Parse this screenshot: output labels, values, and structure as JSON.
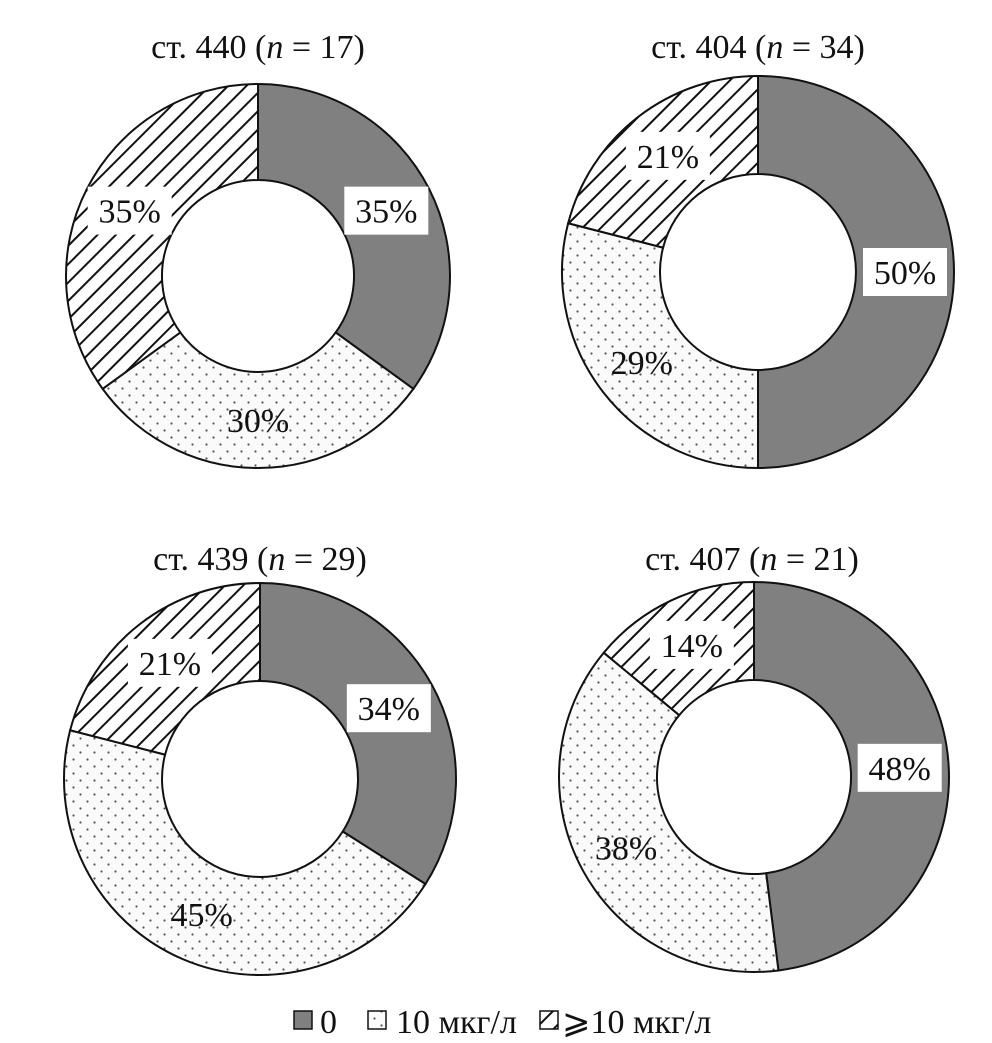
{
  "chart_data": [
    {
      "type": "pie",
      "title": "ст. 440 (n = 17)",
      "title_parts": {
        "prefix": "ст. 440 (",
        "n": "n",
        "suffix": " = 17)"
      },
      "series": [
        {
          "name": "0",
          "value": 35,
          "label": "35%"
        },
        {
          "name": "10 мкг/л",
          "value": 30,
          "label": "30%"
        },
        {
          "name": "≥10 мкг/л",
          "value": 35,
          "label": "35%"
        }
      ]
    },
    {
      "type": "pie",
      "title": "ст. 404 (n = 34)",
      "title_parts": {
        "prefix": "ст. 404 (",
        "n": "n",
        "suffix": " = 34)"
      },
      "series": [
        {
          "name": "0",
          "value": 50,
          "label": "50%"
        },
        {
          "name": "10 мкг/л",
          "value": 29,
          "label": "29%"
        },
        {
          "name": "≥10 мкг/л",
          "value": 21,
          "label": "21%"
        }
      ]
    },
    {
      "type": "pie",
      "title": "ст. 439 (n = 29)",
      "title_parts": {
        "prefix": "ст. 439 (",
        "n": "n",
        "suffix": " = 29)"
      },
      "series": [
        {
          "name": "0",
          "value": 34,
          "label": "34%"
        },
        {
          "name": "10 мкг/л",
          "value": 45,
          "label": "45%"
        },
        {
          "name": "≥10 мкг/л",
          "value": 21,
          "label": "21%"
        }
      ]
    },
    {
      "type": "pie",
      "title": "ст. 407 (n = 21)",
      "title_parts": {
        "prefix": "ст. 407 (",
        "n": "n",
        "suffix": " = 21)"
      },
      "series": [
        {
          "name": "0",
          "value": 48,
          "label": "48%"
        },
        {
          "name": "10 мкг/л",
          "value": 38,
          "label": "38%"
        },
        {
          "name": "≥10 мкг/л",
          "value": 14,
          "label": "14%"
        }
      ]
    }
  ],
  "legend": {
    "placement": "bottom",
    "items": [
      {
        "label": "0",
        "fill": "solid-gray"
      },
      {
        "label": "10 мкг/л",
        "fill": "dotted"
      },
      {
        "label": "⩾10 мкг/л",
        "fill": "hatched"
      }
    ]
  },
  "colors": {
    "solid": "#808080",
    "dotted_background": "#fafafa",
    "dots": "#555555",
    "hatch_background": "#ffffff",
    "hatch_lines": "#111111",
    "outline": "#111111"
  }
}
